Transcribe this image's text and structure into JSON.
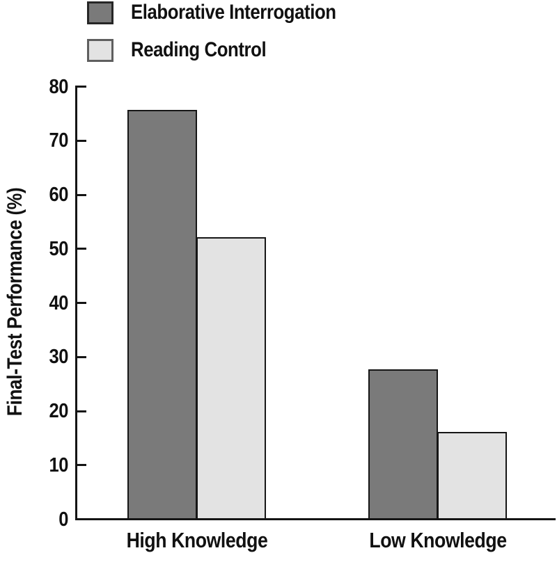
{
  "legend": {
    "items": [
      {
        "label": "Elaborative Interrogation",
        "color": "#7a7a7a",
        "border": "#262626"
      },
      {
        "label": "Reading Control",
        "color": "#e3e3e3",
        "border": "#5f5f5f"
      }
    ]
  },
  "chart_data": {
    "type": "bar",
    "title": "",
    "xlabel": "",
    "ylabel": "Final-Test Performance (%)",
    "categories": [
      "High Knowledge",
      "Low Knowledge"
    ],
    "series": [
      {
        "name": "Elaborative Interrogation",
        "values": [
          75.5,
          27.5
        ],
        "color": "#7a7a7a"
      },
      {
        "name": "Reading Control",
        "values": [
          52,
          16
        ],
        "color": "#e3e3e3"
      }
    ],
    "ylim": [
      0,
      80
    ],
    "yticks": [
      0,
      10,
      20,
      30,
      40,
      50,
      60,
      70,
      80
    ],
    "grid": false,
    "legend_position": "top-left",
    "axis_color": "#141414",
    "bar_border_color": "#161616"
  }
}
